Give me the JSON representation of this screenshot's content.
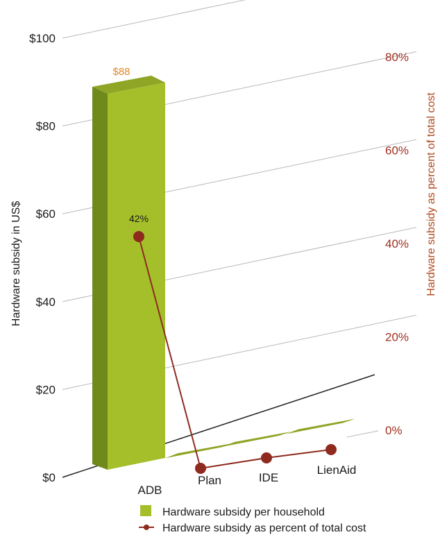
{
  "chart_data": {
    "type": "bar",
    "categories": [
      "ADB",
      "Plan",
      "IDE",
      "LienAid"
    ],
    "series": [
      {
        "name": "Hardware subsidy per household",
        "axis": "left",
        "values": [
          88,
          0,
          0,
          0
        ],
        "data_labels": [
          "$88",
          "",
          "",
          ""
        ],
        "color": "#9bb52a"
      },
      {
        "name": "Hardware subsidy as percent of total cost",
        "axis": "right",
        "type": "line",
        "values": [
          42,
          0,
          1,
          2
        ],
        "data_labels": [
          "42%",
          "",
          "",
          ""
        ],
        "color": "#8e2a1e"
      }
    ],
    "ylabel": "Hardware subsidy in US$",
    "y2label": "Hardware subsidy as percent of total cost",
    "ylim": [
      0,
      100
    ],
    "y2lim": [
      0,
      80
    ],
    "yticks": [
      "$0",
      "$20",
      "$40",
      "$60",
      "$80",
      "$100"
    ],
    "y2ticks": [
      "0%",
      "20%",
      "40%",
      "60%",
      "80%"
    ],
    "legend_position": "bottom",
    "three_d": true,
    "colors": {
      "bar_front": "#a4bf2a",
      "bar_side": "#6f8a1a",
      "bar_top": "#8fa526",
      "line": "#8e2a1e",
      "right_axis_text": "#a03020",
      "bar_label": "#e08a2a"
    }
  }
}
